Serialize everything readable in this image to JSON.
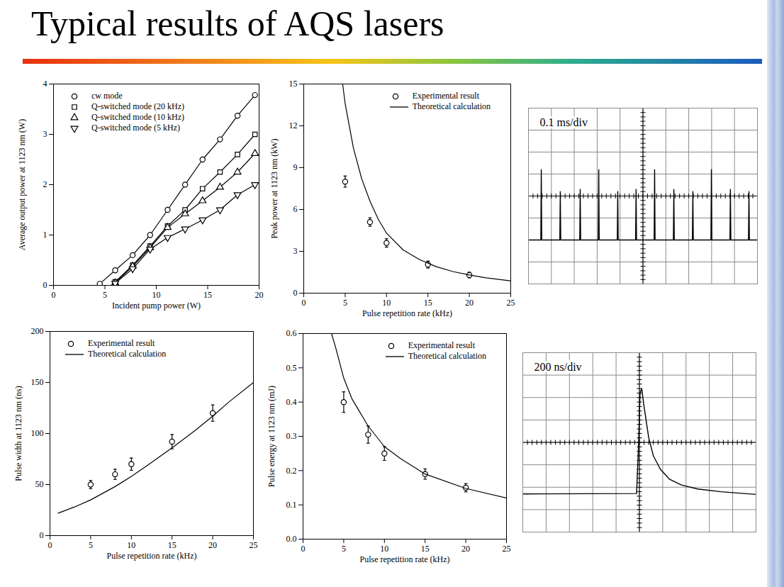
{
  "title": "Typical results of AQS lasers",
  "chart_data": [
    {
      "type": "line",
      "x_label": "Incident pump power (W)",
      "y_label": "Average output power at 1123 nm (W)",
      "xlim": [
        0,
        20
      ],
      "xticks": [
        0,
        5,
        10,
        15,
        20
      ],
      "ylim": [
        0,
        4
      ],
      "yticks": [
        0,
        1,
        2,
        3,
        4
      ],
      "legend": "top-left",
      "series": [
        {
          "name": "cw mode",
          "color": "#000000",
          "marker": "circle",
          "line_style": "solid",
          "x": [
            4.5,
            6,
            7.7,
            9.4,
            11.1,
            12.8,
            14.5,
            16.2,
            17.9,
            19.6
          ],
          "values": [
            0.03,
            0.3,
            0.6,
            1.0,
            1.5,
            2.0,
            2.5,
            2.9,
            3.37,
            3.78
          ]
        },
        {
          "name": "Q-switched mode (20 kHz)",
          "color": "#000000",
          "marker": "square",
          "line_style": "solid",
          "x": [
            6,
            7.7,
            9.4,
            11.1,
            12.8,
            14.5,
            16.2,
            17.9,
            19.6
          ],
          "values": [
            0.07,
            0.4,
            0.78,
            1.18,
            1.5,
            1.92,
            2.25,
            2.6,
            3.0
          ]
        },
        {
          "name": "Q-switched mode (10 kHz)",
          "color": "#000000",
          "marker": "triangle",
          "line_style": "solid",
          "x": [
            6,
            7.7,
            9.4,
            11.1,
            12.8,
            14.5,
            16.2,
            17.9,
            19.6
          ],
          "values": [
            0.05,
            0.38,
            0.75,
            1.15,
            1.42,
            1.68,
            1.95,
            2.25,
            2.62
          ]
        },
        {
          "name": "Q-switched mode (5 kHz)",
          "color": "#000000",
          "marker": "triangle-down",
          "line_style": "solid",
          "x": [
            6,
            7.7,
            9.4,
            11.1,
            12.8,
            14.5,
            16.2,
            17.9,
            19.6
          ],
          "values": [
            0.04,
            0.33,
            0.72,
            0.95,
            1.12,
            1.3,
            1.5,
            1.8,
            2.0
          ]
        }
      ]
    },
    {
      "type": "line",
      "x_label": "Pulse repetition rate (kHz)",
      "y_label": "Peak power at 1123 nm (kW)",
      "xlim": [
        0,
        25
      ],
      "xticks": [
        0,
        5,
        10,
        15,
        20,
        25
      ],
      "ylim": [
        0,
        15
      ],
      "yticks": [
        0,
        3,
        6,
        9,
        12,
        15
      ],
      "legend": "top-right",
      "series": [
        {
          "name": "Experimental result",
          "type": "scatter",
          "color": "#000000",
          "marker": "circle",
          "x": [
            5,
            8,
            10,
            15,
            20
          ],
          "values": [
            8.0,
            5.1,
            3.6,
            2.05,
            1.3
          ],
          "errors": [
            0.4,
            0.3,
            0.3,
            0.25,
            0.2
          ]
        },
        {
          "name": "Theoretical calculation",
          "type": "line",
          "color": "#000000",
          "line_style": "solid",
          "x": [
            4.7,
            5,
            6,
            7,
            8,
            9,
            10,
            12,
            14,
            16,
            18,
            20,
            22,
            25
          ],
          "values": [
            15,
            13.6,
            10.4,
            8.2,
            6.6,
            5.3,
            4.3,
            3.1,
            2.4,
            1.9,
            1.55,
            1.3,
            1.1,
            0.88
          ]
        }
      ]
    },
    {
      "type": "line",
      "x_label": "Pulse repetition rate (kHz)",
      "y_label": "Pulse width at 1123 nm (ns)",
      "xlim": [
        0,
        25
      ],
      "xticks": [
        0,
        5,
        10,
        15,
        20,
        25
      ],
      "ylim": [
        0,
        200
      ],
      "yticks": [
        0,
        50,
        100,
        150,
        200
      ],
      "legend": "top-left",
      "series": [
        {
          "name": "Experimental result",
          "type": "scatter",
          "color": "#000000",
          "marker": "circle",
          "x": [
            5,
            8,
            10,
            15,
            20
          ],
          "values": [
            50,
            60,
            70,
            92,
            120
          ],
          "errors": [
            4,
            5,
            6,
            7,
            8
          ]
        },
        {
          "name": "Theoretical calculation",
          "type": "line",
          "color": "#000000",
          "line_style": "solid",
          "x": [
            1,
            3,
            5,
            8,
            10,
            12,
            15,
            18,
            20,
            22,
            25
          ],
          "values": [
            22,
            28,
            35,
            48,
            58,
            69,
            86,
            104,
            117,
            131,
            150
          ]
        }
      ]
    },
    {
      "type": "line",
      "x_label": "Pulse repetition rate (kHz)",
      "y_label": "Pulse energy at 1123 nm (mJ)",
      "xlim": [
        0,
        25
      ],
      "xticks": [
        0,
        5,
        10,
        15,
        20,
        25
      ],
      "ylim": [
        0,
        0.6
      ],
      "yticks": [
        {
          "value": 0,
          "label": "0.0"
        },
        0.1,
        0.2,
        0.3,
        0.4,
        0.5,
        0.6
      ],
      "legend": "top-right",
      "series": [
        {
          "name": "Experimental result",
          "type": "scatter",
          "color": "#000000",
          "marker": "circle",
          "x": [
            5,
            8,
            10,
            15,
            20
          ],
          "values": [
            0.4,
            0.305,
            0.25,
            0.19,
            0.15
          ],
          "errors": [
            0.03,
            0.025,
            0.02,
            0.015,
            0.012
          ]
        },
        {
          "name": "Theoretical calculation",
          "type": "line",
          "color": "#000000",
          "line_style": "solid",
          "x": [
            3.5,
            4,
            5,
            6,
            8,
            10,
            12,
            15,
            20,
            25
          ],
          "values": [
            0.6,
            0.56,
            0.47,
            0.41,
            0.33,
            0.27,
            0.235,
            0.19,
            0.148,
            0.12
          ]
        }
      ]
    },
    {
      "type": "line",
      "title": "0.1 ms/div",
      "xlim": [
        0,
        10
      ],
      "xticks": [
        0,
        1,
        2,
        3,
        4,
        5,
        6,
        7,
        8,
        9,
        10
      ],
      "ylim": [
        0,
        8
      ],
      "yticks": [
        0,
        1,
        2,
        3,
        4,
        5,
        6,
        7,
        8
      ],
      "grid": true,
      "tick_labels": false,
      "series": [
        {
          "color": "#000000",
          "line_style": "solid",
          "x": [
            0,
            0.54,
            0.56,
            0.58,
            1.37,
            1.39,
            1.41,
            2.24,
            2.26,
            2.28,
            3.05,
            3.07,
            3.09,
            3.88,
            3.9,
            3.92,
            4.68,
            4.7,
            4.72,
            5.49,
            5.51,
            5.53,
            6.33,
            6.35,
            6.37,
            7.16,
            7.18,
            7.2,
            7.97,
            7.99,
            8.01,
            8.8,
            8.82,
            8.84,
            9.61,
            9.63,
            9.65,
            10
          ],
          "values": [
            2,
            2,
            5.2,
            2,
            2,
            4.2,
            2,
            2,
            4.3,
            2,
            2,
            5.2,
            2,
            2,
            4.2,
            2,
            2,
            4.3,
            2,
            2,
            5.2,
            2,
            2,
            4.3,
            2,
            2,
            4.2,
            2,
            2,
            5.2,
            2,
            2,
            4.3,
            2,
            2,
            4.2,
            2,
            2
          ]
        }
      ]
    },
    {
      "type": "line",
      "title": "200 ns/div",
      "xlim": [
        0,
        10
      ],
      "xticks": [
        0,
        1,
        2,
        3,
        4,
        5,
        6,
        7,
        8,
        9,
        10
      ],
      "ylim": [
        0,
        8
      ],
      "yticks": [
        0,
        1,
        2,
        3,
        4,
        5,
        6,
        7,
        8
      ],
      "grid": true,
      "tick_labels": false,
      "series": [
        {
          "color": "#000000",
          "line_style": "solid",
          "x": [
            0,
            4.88,
            4.95,
            5.03,
            5.1,
            5.2,
            5.4,
            5.6,
            5.9,
            6.3,
            6.8,
            7.5,
            8.5,
            10
          ],
          "values": [
            1.7,
            1.72,
            3.5,
            6.2,
            6.4,
            5.6,
            4.2,
            3.4,
            2.8,
            2.35,
            2.1,
            1.92,
            1.8,
            1.68
          ]
        }
      ]
    }
  ]
}
